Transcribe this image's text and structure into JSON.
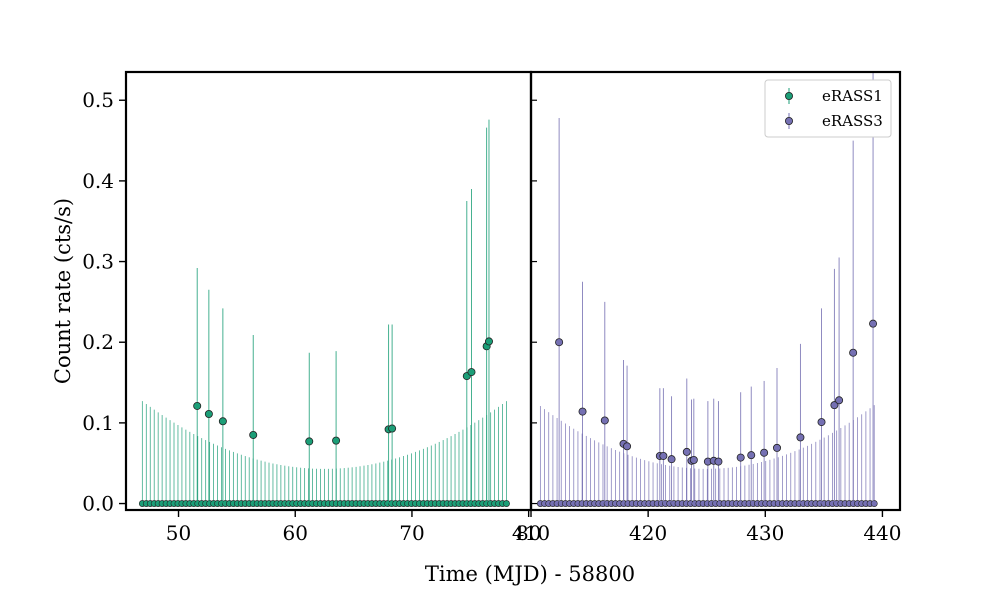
{
  "chart_data": {
    "type": "scatter",
    "ylabel": "Count rate (cts/s)",
    "xlabel": "Time (MJD) - 58800",
    "ylim": [
      -0.008,
      0.535
    ],
    "yticks": [
      0.0,
      0.1,
      0.2,
      0.3,
      0.4,
      0.5
    ],
    "ytick_labels": [
      "0.0",
      "0.1",
      "0.2",
      "0.3",
      "0.4",
      "0.5"
    ],
    "legend_position": "top-right",
    "panels": [
      {
        "name": "eRASS1",
        "color": "#1b9e77",
        "xlim": [
          45.5,
          80.2
        ],
        "xticks": [
          50,
          60,
          70,
          80
        ],
        "xtick_labels": [
          "50",
          "60",
          "70",
          "80"
        ],
        "zero_count_points": {
          "x_start": 46.9,
          "x_end": 78.1,
          "count": 93,
          "y": 0.0
        },
        "upper_limit_envelope": {
          "type": "parabola",
          "center": 62.5,
          "min": 0.043,
          "edge_max": 0.127
        },
        "detections": [
          {
            "x": 51.6,
            "y": 0.121,
            "yerr_up": 0.292
          },
          {
            "x": 52.6,
            "y": 0.111,
            "yerr_up": 0.265
          },
          {
            "x": 53.8,
            "y": 0.102,
            "yerr_up": 0.242
          },
          {
            "x": 56.4,
            "y": 0.085,
            "yerr_up": 0.209
          },
          {
            "x": 61.2,
            "y": 0.077,
            "yerr_up": 0.187
          },
          {
            "x": 63.5,
            "y": 0.078,
            "yerr_up": 0.189
          },
          {
            "x": 68.0,
            "y": 0.092,
            "yerr_up": 0.222
          },
          {
            "x": 68.3,
            "y": 0.093,
            "yerr_up": 0.222
          },
          {
            "x": 74.7,
            "y": 0.158,
            "yerr_up": 0.375
          },
          {
            "x": 75.1,
            "y": 0.163,
            "yerr_up": 0.39
          },
          {
            "x": 76.4,
            "y": 0.195,
            "yerr_up": 0.466
          },
          {
            "x": 76.6,
            "y": 0.201,
            "yerr_up": 0.476
          }
        ]
      },
      {
        "name": "eRASS3",
        "color": "#7570b3",
        "xlim": [
          410.0,
          441.5
        ],
        "xticks": [
          410,
          420,
          430,
          440
        ],
        "xtick_labels": [
          "410",
          "420",
          "430",
          "440"
        ],
        "zero_count_points": {
          "x_start": 410.8,
          "x_end": 439.3,
          "count": 81,
          "y": 0.0
        },
        "upper_limit_envelope": {
          "type": "parabola",
          "center": 425.0,
          "min": 0.043,
          "edge_max": 0.122
        },
        "detections": [
          {
            "x": 412.4,
            "y": 0.2,
            "yerr_up": 0.478
          },
          {
            "x": 414.4,
            "y": 0.114,
            "yerr_up": 0.275
          },
          {
            "x": 416.3,
            "y": 0.103,
            "yerr_up": 0.25
          },
          {
            "x": 417.9,
            "y": 0.074,
            "yerr_up": 0.178
          },
          {
            "x": 418.2,
            "y": 0.071,
            "yerr_up": 0.171
          },
          {
            "x": 421.0,
            "y": 0.059,
            "yerr_up": 0.143
          },
          {
            "x": 421.3,
            "y": 0.059,
            "yerr_up": 0.143
          },
          {
            "x": 422.0,
            "y": 0.055,
            "yerr_up": 0.133
          },
          {
            "x": 423.3,
            "y": 0.064,
            "yerr_up": 0.155
          },
          {
            "x": 423.7,
            "y": 0.053,
            "yerr_up": 0.129
          },
          {
            "x": 423.9,
            "y": 0.054,
            "yerr_up": 0.13
          },
          {
            "x": 425.1,
            "y": 0.052,
            "yerr_up": 0.127
          },
          {
            "x": 425.6,
            "y": 0.053,
            "yerr_up": 0.13
          },
          {
            "x": 426.0,
            "y": 0.052,
            "yerr_up": 0.127
          },
          {
            "x": 427.9,
            "y": 0.057,
            "yerr_up": 0.138
          },
          {
            "x": 428.8,
            "y": 0.06,
            "yerr_up": 0.145
          },
          {
            "x": 429.9,
            "y": 0.063,
            "yerr_up": 0.152
          },
          {
            "x": 431.0,
            "y": 0.069,
            "yerr_up": 0.168
          },
          {
            "x": 433.0,
            "y": 0.082,
            "yerr_up": 0.198
          },
          {
            "x": 434.8,
            "y": 0.101,
            "yerr_up": 0.242
          },
          {
            "x": 435.9,
            "y": 0.122,
            "yerr_up": 0.291
          },
          {
            "x": 436.3,
            "y": 0.128,
            "yerr_up": 0.305
          },
          {
            "x": 437.5,
            "y": 0.187,
            "yerr_up": 0.45
          },
          {
            "x": 439.2,
            "y": 0.223,
            "yerr_up": 0.535
          }
        ]
      }
    ]
  }
}
